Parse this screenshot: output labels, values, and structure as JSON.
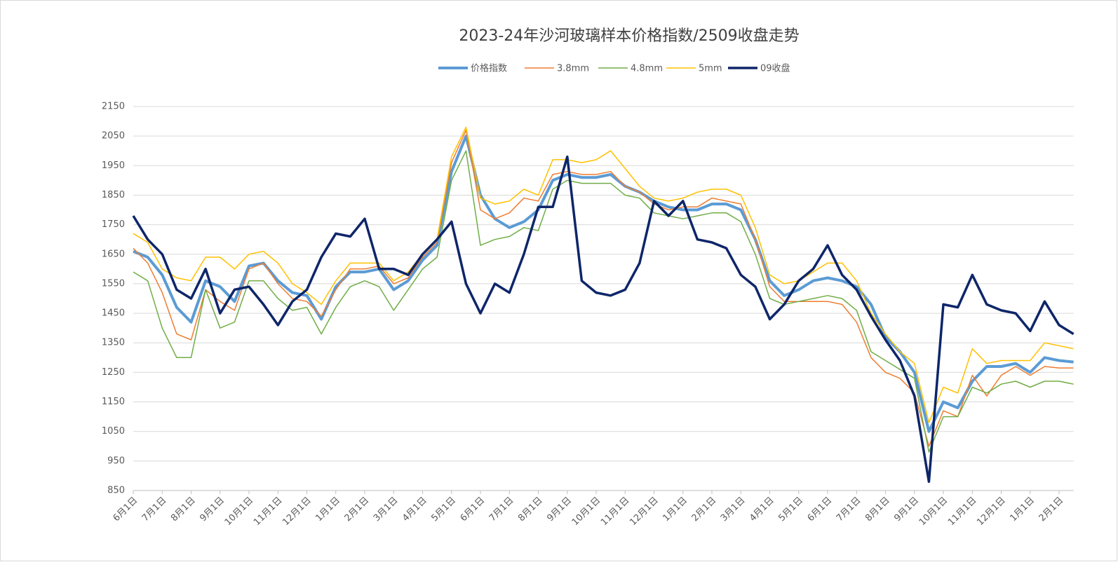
{
  "chart_data": {
    "type": "line",
    "title": "2023-24年沙河玻璃样本价格指数/2509收盘走势",
    "categories": [
      "6月1日",
      null,
      "7月1日",
      null,
      "8月1日",
      null,
      "9月1日",
      null,
      "10月1日",
      null,
      "11月1日",
      null,
      "12月1日",
      null,
      "1月1日",
      null,
      "2月1日",
      null,
      "3月1日",
      null,
      "4月1日",
      null,
      "5月1日",
      null,
      "6月1日",
      null,
      "7月1日",
      null,
      "8月1日",
      null,
      "9月1日",
      null,
      "10月1日",
      null,
      "11月1日",
      null,
      "12月1日",
      null,
      "1月1日",
      null,
      "2月1日",
      null,
      "3月1日",
      null,
      "4月1日",
      null,
      "5月1日",
      null,
      "6月1日",
      null,
      "7月1日",
      null,
      "8月1日",
      null,
      "9月1日",
      null,
      "10月1日",
      null,
      "11月1日",
      null,
      "12月1日",
      null,
      "1月1日",
      null,
      "2月1日",
      null
    ],
    "series": [
      {
        "name": "价格指数",
        "color": "#5b9bd5",
        "values": [
          1660,
          1640,
          1580,
          1470,
          1420,
          1560,
          1540,
          1490,
          1610,
          1620,
          1560,
          1520,
          1510,
          1430,
          1540,
          1590,
          1590,
          1600,
          1530,
          1560,
          1630,
          1680,
          1930,
          2050,
          1850,
          1770,
          1740,
          1760,
          1800,
          1900,
          1920,
          1910,
          1910,
          1920,
          1880,
          1860,
          1830,
          1810,
          1800,
          1800,
          1820,
          1820,
          1800,
          1700,
          1560,
          1510,
          1530,
          1560,
          1570,
          1560,
          1540,
          1480,
          1370,
          1320,
          1250,
          1050,
          1150,
          1130,
          1220,
          1270,
          1270,
          1280,
          1250,
          1300,
          1290,
          1285
        ]
      },
      {
        "name": "3.8mm",
        "color": "#ed7d31",
        "values": [
          1670,
          1620,
          1520,
          1380,
          1360,
          1530,
          1490,
          1460,
          1600,
          1620,
          1550,
          1500,
          1490,
          1440,
          1530,
          1600,
          1600,
          1610,
          1550,
          1570,
          1640,
          1690,
          1960,
          2070,
          1800,
          1770,
          1790,
          1840,
          1830,
          1920,
          1930,
          1920,
          1920,
          1930,
          1880,
          1860,
          1820,
          1800,
          1810,
          1810,
          1840,
          1830,
          1820,
          1700,
          1540,
          1490,
          1490,
          1490,
          1490,
          1480,
          1420,
          1300,
          1250,
          1230,
          1180,
          1000,
          1120,
          1100,
          1240,
          1170,
          1240,
          1270,
          1240,
          1270,
          1265,
          1265
        ]
      },
      {
        "name": "4.8mm",
        "color": "#70ad47",
        "values": [
          1590,
          1560,
          1400,
          1300,
          1300,
          1530,
          1400,
          1420,
          1560,
          1560,
          1500,
          1460,
          1470,
          1380,
          1470,
          1540,
          1560,
          1540,
          1460,
          1530,
          1600,
          1640,
          1900,
          2000,
          1680,
          1700,
          1710,
          1740,
          1730,
          1870,
          1900,
          1890,
          1890,
          1890,
          1850,
          1840,
          1790,
          1780,
          1770,
          1780,
          1790,
          1790,
          1760,
          1650,
          1500,
          1480,
          1490,
          1500,
          1510,
          1500,
          1460,
          1320,
          1290,
          1260,
          1230,
          980,
          1100,
          1100,
          1200,
          1180,
          1210,
          1220,
          1200,
          1220,
          1220,
          1210
        ]
      },
      {
        "name": "5mm",
        "color": "#ffc000",
        "values": [
          1720,
          1690,
          1600,
          1570,
          1560,
          1640,
          1640,
          1600,
          1650,
          1660,
          1620,
          1550,
          1520,
          1480,
          1560,
          1620,
          1620,
          1620,
          1560,
          1590,
          1650,
          1700,
          1980,
          2080,
          1840,
          1820,
          1830,
          1870,
          1850,
          1970,
          1970,
          1960,
          1970,
          2000,
          1940,
          1880,
          1840,
          1830,
          1840,
          1860,
          1870,
          1870,
          1850,
          1740,
          1580,
          1550,
          1560,
          1590,
          1620,
          1620,
          1560,
          1450,
          1380,
          1320,
          1280,
          1080,
          1200,
          1180,
          1330,
          1280,
          1290,
          1290,
          1290,
          1350,
          1340,
          1330
        ]
      },
      {
        "name": "09收盘",
        "color": "#0e2669",
        "values": [
          1780,
          1700,
          1650,
          1530,
          1500,
          1600,
          1450,
          1530,
          1540,
          1480,
          1410,
          1490,
          1530,
          1640,
          1720,
          1710,
          1770,
          1600,
          1600,
          1580,
          1650,
          1700,
          1760,
          1550,
          1450,
          1550,
          1520,
          1650,
          1810,
          1810,
          1980,
          1560,
          1520,
          1510,
          1530,
          1620,
          1830,
          1780,
          1830,
          1700,
          1690,
          1670,
          1580,
          1540,
          1430,
          1480,
          1560,
          1600,
          1680,
          1580,
          1530,
          1440,
          1360,
          1290,
          1170,
          880,
          1480,
          1470,
          1580,
          1480,
          1460,
          1450,
          1390,
          1490,
          1410,
          1380
        ]
      }
    ],
    "ylim": [
      850,
      2150
    ],
    "yticks": [
      850,
      950,
      1050,
      1150,
      1250,
      1350,
      1450,
      1550,
      1650,
      1750,
      1850,
      1950,
      2050,
      2150
    ],
    "grid": true,
    "legend": "top"
  }
}
